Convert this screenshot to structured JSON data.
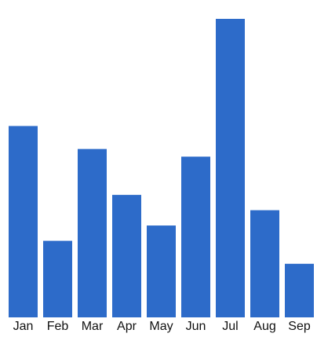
{
  "chart_data": {
    "type": "bar",
    "categories": [
      "Jan",
      "Feb",
      "Mar",
      "Apr",
      "May",
      "Jun",
      "Jul",
      "Aug",
      "Sep"
    ],
    "values": [
      25,
      10,
      22,
      16,
      12,
      21,
      39,
      14,
      7
    ],
    "title": "",
    "xlabel": "",
    "ylabel": "",
    "ylim": [
      0,
      39
    ],
    "grid": false,
    "legend": "none",
    "bar_color": "#2d6bc9"
  }
}
